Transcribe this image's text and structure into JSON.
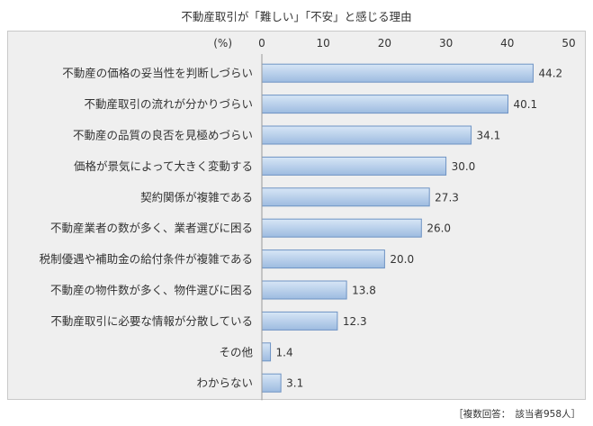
{
  "footnote": "［複数回答：　該当者958人］",
  "colors": {
    "bar_top": "#d7e6f6",
    "bar_bottom": "#9dbbe0",
    "bar_border": "#6e93c4",
    "frame_bg": "#efefef"
  },
  "chart_data": {
    "type": "bar",
    "orientation": "horizontal",
    "title": "不動産取引が「難しい」「不安」と感じる理由",
    "unit_label": "(%)",
    "xlim": [
      0,
      50
    ],
    "ticks": [
      0,
      10,
      20,
      30,
      40,
      50
    ],
    "tick_labels": [
      "0",
      "10",
      "20",
      "30",
      "40",
      "50"
    ],
    "grid": false,
    "categories": [
      "不動産の価格の妥当性を判断しづらい",
      "不動産取引の流れが分かりづらい",
      "不動産の品質の良否を見極めづらい",
      "価格が景気によって大きく変動する",
      "契約関係が複雑である",
      "不動産業者の数が多く、業者選びに困る",
      "税制優遇や補助金の給付条件が複雑である",
      "不動産の物件数が多く、物件選びに困る",
      "不動産取引に必要な情報が分散している",
      "その他",
      "わからない"
    ],
    "values": [
      44.2,
      40.1,
      34.1,
      30.0,
      27.3,
      26.0,
      20.0,
      13.8,
      12.3,
      1.4,
      3.1
    ],
    "value_labels": [
      "44.2",
      "40.1",
      "34.1",
      "30.0",
      "27.3",
      "26.0",
      "20.0",
      "13.8",
      "12.3",
      "1.4",
      "3.1"
    ]
  }
}
